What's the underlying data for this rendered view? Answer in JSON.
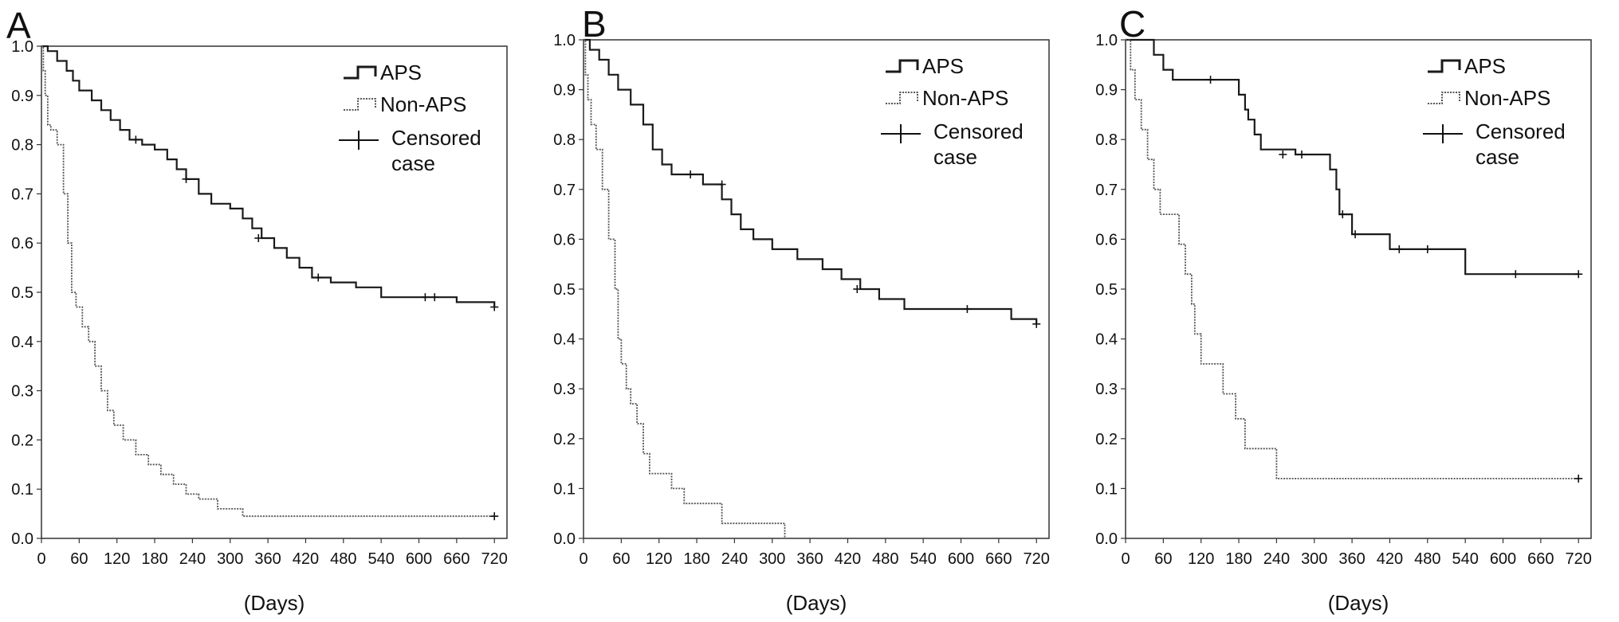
{
  "colors": {
    "aps": "#1a1a1a",
    "non_aps": "#555555",
    "axis": "#333333",
    "text": "#111111"
  },
  "chart_data": [
    {
      "panel_label": "A",
      "type": "line",
      "title": "",
      "xlabel": "(Days)",
      "ylabel": "",
      "xlim": [
        0,
        740
      ],
      "ylim": [
        0,
        1.0
      ],
      "x_ticks": [
        0,
        60,
        120,
        180,
        240,
        300,
        360,
        420,
        480,
        540,
        600,
        660,
        720
      ],
      "y_ticks": [
        0.0,
        0.1,
        0.2,
        0.3,
        0.4,
        0.5,
        0.6,
        0.7,
        0.8,
        0.9,
        1.0
      ],
      "legend": [
        "APS",
        "Non-APS",
        "Censored case"
      ],
      "legend_position": "top-right",
      "series": [
        {
          "name": "APS",
          "style": "solid",
          "x": [
            0,
            10,
            25,
            40,
            50,
            60,
            80,
            95,
            110,
            125,
            140,
            160,
            180,
            200,
            215,
            230,
            250,
            270,
            300,
            320,
            335,
            350,
            370,
            390,
            410,
            430,
            460,
            500,
            540,
            600,
            660,
            720
          ],
          "y": [
            1.0,
            0.99,
            0.97,
            0.95,
            0.93,
            0.91,
            0.89,
            0.87,
            0.85,
            0.83,
            0.81,
            0.8,
            0.79,
            0.77,
            0.75,
            0.73,
            0.7,
            0.68,
            0.67,
            0.65,
            0.63,
            0.61,
            0.59,
            0.57,
            0.55,
            0.53,
            0.52,
            0.51,
            0.49,
            0.49,
            0.48,
            0.47
          ],
          "censored": [
            {
              "x": 150,
              "y": 0.81
            },
            {
              "x": 230,
              "y": 0.73
            },
            {
              "x": 345,
              "y": 0.61
            },
            {
              "x": 440,
              "y": 0.53
            },
            {
              "x": 610,
              "y": 0.49
            },
            {
              "x": 625,
              "y": 0.49
            },
            {
              "x": 720,
              "y": 0.47
            }
          ]
        },
        {
          "name": "Non-APS",
          "style": "dotted",
          "x": [
            0,
            3,
            6,
            10,
            15,
            25,
            35,
            42,
            48,
            55,
            65,
            75,
            85,
            95,
            105,
            115,
            130,
            150,
            170,
            190,
            210,
            230,
            250,
            280,
            320,
            720
          ],
          "y": [
            1.0,
            0.95,
            0.9,
            0.84,
            0.83,
            0.8,
            0.7,
            0.6,
            0.5,
            0.47,
            0.43,
            0.4,
            0.35,
            0.3,
            0.26,
            0.23,
            0.2,
            0.17,
            0.15,
            0.13,
            0.11,
            0.09,
            0.08,
            0.06,
            0.045,
            0.045
          ],
          "censored": [
            {
              "x": 720,
              "y": 0.045
            }
          ]
        }
      ]
    },
    {
      "panel_label": "B",
      "type": "line",
      "title": "",
      "xlabel": "(Days)",
      "ylabel": "",
      "xlim": [
        0,
        740
      ],
      "ylim": [
        0,
        1.0
      ],
      "x_ticks": [
        0,
        60,
        120,
        180,
        240,
        300,
        360,
        420,
        480,
        540,
        600,
        660,
        720
      ],
      "y_ticks": [
        0.0,
        0.1,
        0.2,
        0.3,
        0.4,
        0.5,
        0.6,
        0.7,
        0.8,
        0.9,
        1.0
      ],
      "legend": [
        "APS",
        "Non-APS",
        "Censored case"
      ],
      "legend_position": "top-right",
      "series": [
        {
          "name": "APS",
          "style": "solid",
          "x": [
            0,
            10,
            25,
            40,
            55,
            75,
            95,
            110,
            125,
            140,
            150,
            165,
            190,
            220,
            235,
            250,
            270,
            300,
            340,
            380,
            410,
            440,
            470,
            510,
            560,
            600,
            680,
            720
          ],
          "y": [
            1.0,
            0.98,
            0.96,
            0.93,
            0.9,
            0.87,
            0.83,
            0.78,
            0.75,
            0.73,
            0.73,
            0.73,
            0.71,
            0.68,
            0.65,
            0.62,
            0.6,
            0.58,
            0.56,
            0.54,
            0.52,
            0.5,
            0.48,
            0.46,
            0.46,
            0.46,
            0.44,
            0.43
          ],
          "censored": [
            {
              "x": 170,
              "y": 0.73
            },
            {
              "x": 220,
              "y": 0.71
            },
            {
              "x": 435,
              "y": 0.5
            },
            {
              "x": 610,
              "y": 0.46
            },
            {
              "x": 720,
              "y": 0.43
            }
          ]
        },
        {
          "name": "Non-APS",
          "style": "dotted",
          "x": [
            0,
            3,
            7,
            12,
            20,
            30,
            40,
            50,
            55,
            60,
            68,
            75,
            85,
            95,
            105,
            125,
            140,
            160,
            220,
            260,
            320
          ],
          "y": [
            1.0,
            0.93,
            0.88,
            0.83,
            0.78,
            0.7,
            0.6,
            0.5,
            0.4,
            0.35,
            0.3,
            0.27,
            0.23,
            0.17,
            0.13,
            0.13,
            0.1,
            0.07,
            0.03,
            0.03,
            0.0
          ]
        }
      ]
    },
    {
      "panel_label": "C",
      "type": "line",
      "title": "",
      "xlabel": "(Days)",
      "ylabel": "",
      "xlim": [
        0,
        740
      ],
      "ylim": [
        0,
        1.0
      ],
      "x_ticks": [
        0,
        60,
        120,
        180,
        240,
        300,
        360,
        420,
        480,
        540,
        600,
        660,
        720
      ],
      "y_ticks": [
        0.0,
        0.1,
        0.2,
        0.3,
        0.4,
        0.5,
        0.6,
        0.7,
        0.8,
        0.9,
        1.0
      ],
      "legend": [
        "APS",
        "Non-APS",
        "Censored case"
      ],
      "legend_position": "top-right",
      "series": [
        {
          "name": "APS",
          "style": "solid",
          "x": [
            0,
            45,
            60,
            75,
            120,
            150,
            180,
            190,
            195,
            205,
            215,
            270,
            290,
            300,
            325,
            335,
            340,
            360,
            380,
            420,
            480,
            540,
            600,
            720
          ],
          "y": [
            1.0,
            0.97,
            0.94,
            0.92,
            0.92,
            0.92,
            0.89,
            0.86,
            0.84,
            0.81,
            0.78,
            0.77,
            0.77,
            0.77,
            0.74,
            0.7,
            0.65,
            0.61,
            0.61,
            0.58,
            0.58,
            0.53,
            0.53,
            0.53
          ],
          "censored": [
            {
              "x": 135,
              "y": 0.92
            },
            {
              "x": 250,
              "y": 0.77
            },
            {
              "x": 280,
              "y": 0.77
            },
            {
              "x": 345,
              "y": 0.65
            },
            {
              "x": 365,
              "y": 0.61
            },
            {
              "x": 435,
              "y": 0.58
            },
            {
              "x": 480,
              "y": 0.58
            },
            {
              "x": 620,
              "y": 0.53
            },
            {
              "x": 720,
              "y": 0.53
            }
          ]
        },
        {
          "name": "Non-APS",
          "style": "dotted",
          "x": [
            0,
            8,
            15,
            25,
            35,
            45,
            55,
            70,
            85,
            95,
            105,
            110,
            120,
            135,
            155,
            175,
            190,
            210,
            240,
            270,
            720
          ],
          "y": [
            1.0,
            0.94,
            0.88,
            0.82,
            0.76,
            0.7,
            0.65,
            0.65,
            0.59,
            0.53,
            0.47,
            0.41,
            0.35,
            0.35,
            0.29,
            0.24,
            0.18,
            0.18,
            0.12,
            0.12,
            0.12
          ],
          "censored": [
            {
              "x": 720,
              "y": 0.12
            }
          ]
        }
      ]
    }
  ]
}
